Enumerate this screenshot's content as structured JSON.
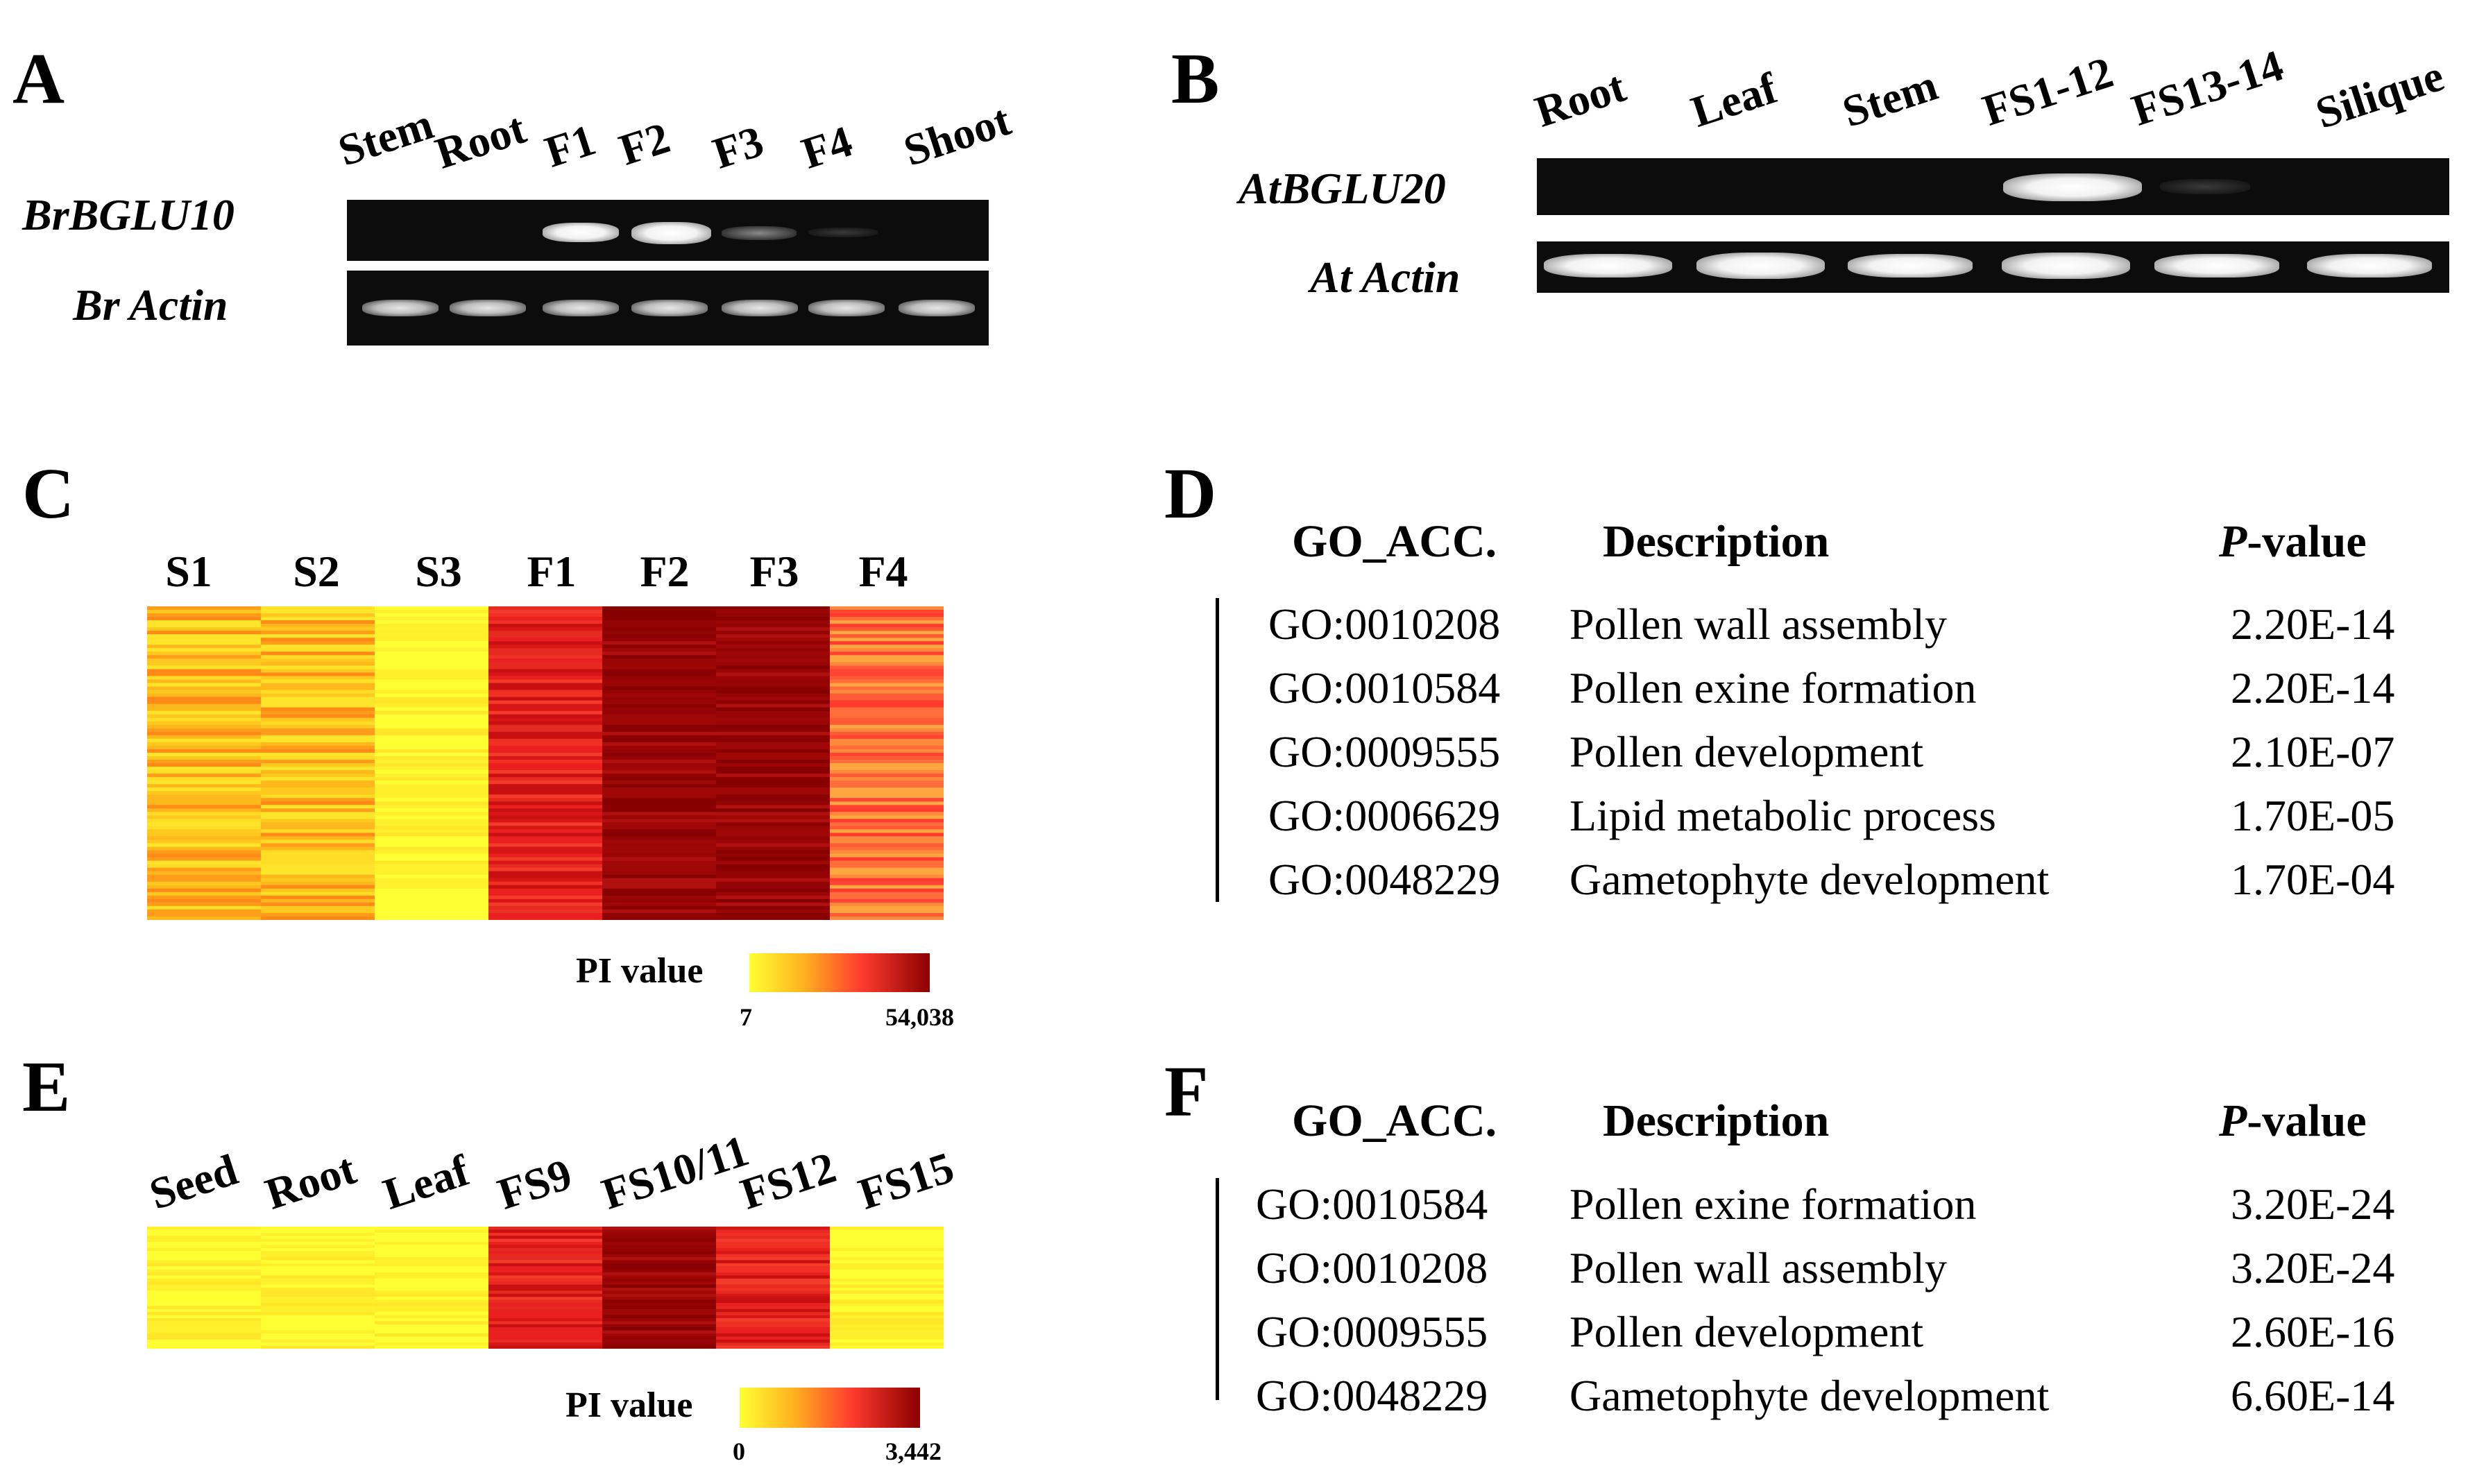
{
  "panels": {
    "A": {
      "letter": "A",
      "genes": [
        "BrBGLU10",
        "Br Actin"
      ],
      "lanes": [
        "Stem",
        "Root",
        "F1",
        "F2",
        "F3",
        "F4",
        "Shoot"
      ],
      "expression_top": [
        0,
        0,
        0.85,
        1.0,
        0.35,
        0.03,
        0
      ]
    },
    "B": {
      "letter": "B",
      "genes": [
        "AtBGLU20",
        "At Actin"
      ],
      "lanes": [
        "Root",
        "Leaf",
        "Stem",
        "FS1-12",
        "FS13-14",
        "Silique"
      ],
      "expression_top": [
        0,
        0,
        0,
        1.0,
        0.05,
        0
      ]
    },
    "C": {
      "letter": "C",
      "columns": [
        "S1",
        "S2",
        "S3",
        "F1",
        "F2",
        "F3",
        "F4"
      ],
      "scale_title": "PI value",
      "scale_min": "7",
      "scale_max": "54,038"
    },
    "D": {
      "letter": "D",
      "headers": {
        "acc": "GO_ACC.",
        "desc": "Description",
        "p_italic": "P",
        "p_rest": "-value"
      },
      "rows": [
        {
          "acc": "GO:0010208",
          "desc": "Pollen wall assembly",
          "p": "2.20E-14"
        },
        {
          "acc": "GO:0010584",
          "desc": "Pollen exine formation",
          "p": "2.20E-14"
        },
        {
          "acc": "GO:0009555",
          "desc": "Pollen development",
          "p": "2.10E-07"
        },
        {
          "acc": "GO:0006629",
          "desc": "Lipid metabolic process",
          "p": "1.70E-05"
        },
        {
          "acc": "GO:0048229",
          "desc": "Gametophyte development",
          "p": "1.70E-04"
        }
      ]
    },
    "E": {
      "letter": "E",
      "columns": [
        "Seed",
        "Root",
        "Leaf",
        "FS9",
        "FS10/11",
        "FS12",
        "FS15"
      ],
      "scale_title": "PI value",
      "scale_min": "0",
      "scale_max": "3,442"
    },
    "F": {
      "letter": "F",
      "headers": {
        "acc": "GO_ACC.",
        "desc": "Description",
        "p_italic": "P",
        "p_rest": "-value"
      },
      "rows": [
        {
          "acc": "GO:0010584",
          "desc": "Pollen exine formation",
          "p": "3.20E-24"
        },
        {
          "acc": "GO:0010208",
          "desc": "Pollen wall assembly",
          "p": "3.20E-24"
        },
        {
          "acc": "GO:0009555",
          "desc": "Pollen development",
          "p": "2.60E-16"
        },
        {
          "acc": "GO:0048229",
          "desc": "Gametophyte development",
          "p": "6.60E-14"
        }
      ]
    }
  },
  "colors": {
    "gel_bg": "#0c0c0c",
    "heat_low": "#ffff33",
    "heat_mid": "#ff3b2f",
    "heat_high": "#8b0000"
  },
  "heatmap_c_levels": [
    "yellow-orange",
    "yellow-orange",
    "yellow",
    "red",
    "dark-red",
    "dark-red",
    "red-light"
  ],
  "heatmap_e_levels": [
    "yellow",
    "yellow",
    "yellow",
    "red",
    "dark-red",
    "red",
    "yellow"
  ]
}
